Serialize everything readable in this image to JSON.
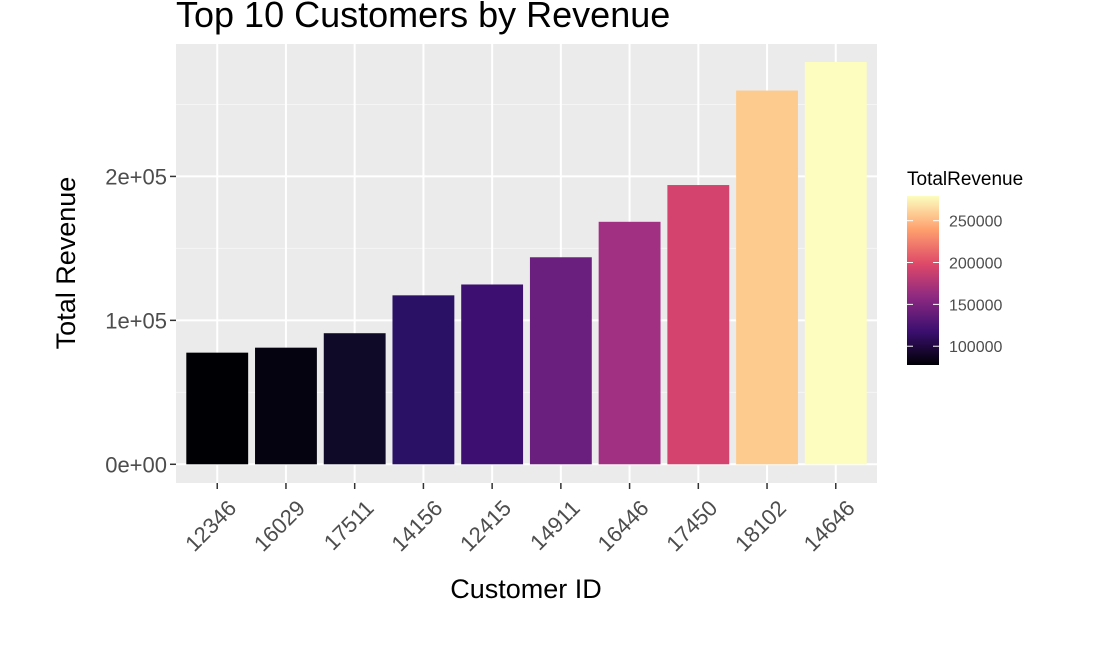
{
  "chart_data": {
    "type": "bar",
    "title": "Top 10 Customers by Revenue",
    "xlabel": "Customer ID",
    "ylabel": "Total Revenue",
    "categories": [
      "12346",
      "16029",
      "17511",
      "14156",
      "12415",
      "14911",
      "16446",
      "17450",
      "18102",
      "14646"
    ],
    "values": [
      77556,
      81025,
      91063,
      117379,
      124915,
      143826,
      168473,
      194003,
      259657,
      279489
    ],
    "bar_colors": [
      "#000004",
      "#04030f",
      "#0f0a27",
      "#2b1165",
      "#3c0f70",
      "#6a1f7f",
      "#a12f82",
      "#d3436e",
      "#fecb8e",
      "#fcfdbf"
    ],
    "ylim": [
      -13000,
      292000
    ],
    "y_ticks": [
      0,
      100000,
      200000
    ],
    "y_tick_labels": [
      "0e+00",
      "1e+05",
      "2e+05"
    ],
    "grid": true,
    "legend": {
      "title": "TotalRevenue",
      "placement": "right",
      "range": [
        77556,
        279489
      ],
      "ticks": [
        100000,
        150000,
        200000,
        250000
      ],
      "tick_labels": [
        "100000",
        "150000",
        "200000",
        "250000"
      ],
      "gradient": [
        "#000004",
        "#3b0f70",
        "#8c2981",
        "#de4968",
        "#fe9f6d",
        "#fcfdbf"
      ]
    },
    "colors": {
      "panel_background": "#ebebeb",
      "grid_major": "#ffffff",
      "grid_minor": "#f5f5f5",
      "tick_mark": "#333333"
    }
  }
}
